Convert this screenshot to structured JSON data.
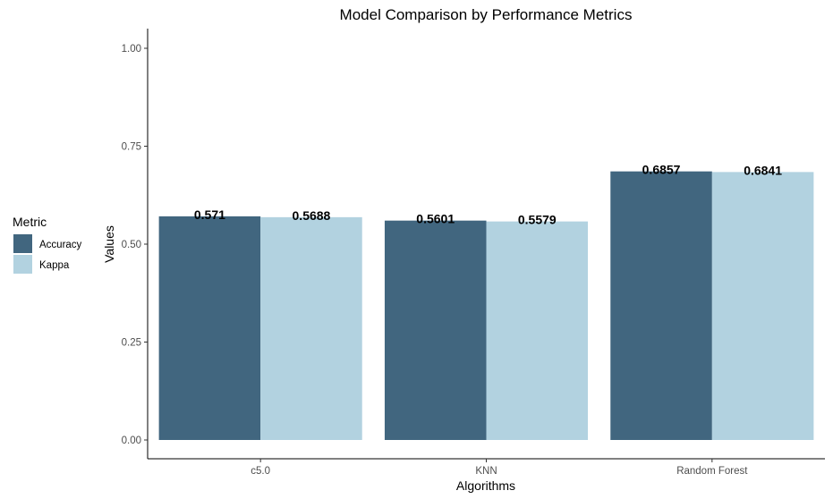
{
  "chart_data": {
    "type": "bar",
    "title": "Model Comparison by Performance Metrics",
    "xlabel": "Algorithms",
    "ylabel": "Values",
    "categories": [
      "c5.0",
      "KNN",
      "Random Forest"
    ],
    "series": [
      {
        "name": "Accuracy",
        "values": [
          0.571,
          0.5601,
          0.6857
        ],
        "labels": [
          "0.571",
          "0.5601",
          "0.6857"
        ],
        "color": "#41667f"
      },
      {
        "name": "Kappa",
        "values": [
          0.5688,
          0.5579,
          0.6841
        ],
        "labels": [
          "0.5688",
          "0.5579",
          "0.6841"
        ],
        "color": "#b2d2e0"
      }
    ],
    "ylim": [
      0,
      1.05
    ],
    "yticks": [
      0,
      0.25,
      0.5,
      0.75,
      1.0
    ],
    "ytick_labels": [
      "0.00",
      "0.25",
      "0.50",
      "0.75",
      "1.00"
    ],
    "legend": {
      "title": "Metric",
      "position": "left"
    },
    "grid": false
  }
}
